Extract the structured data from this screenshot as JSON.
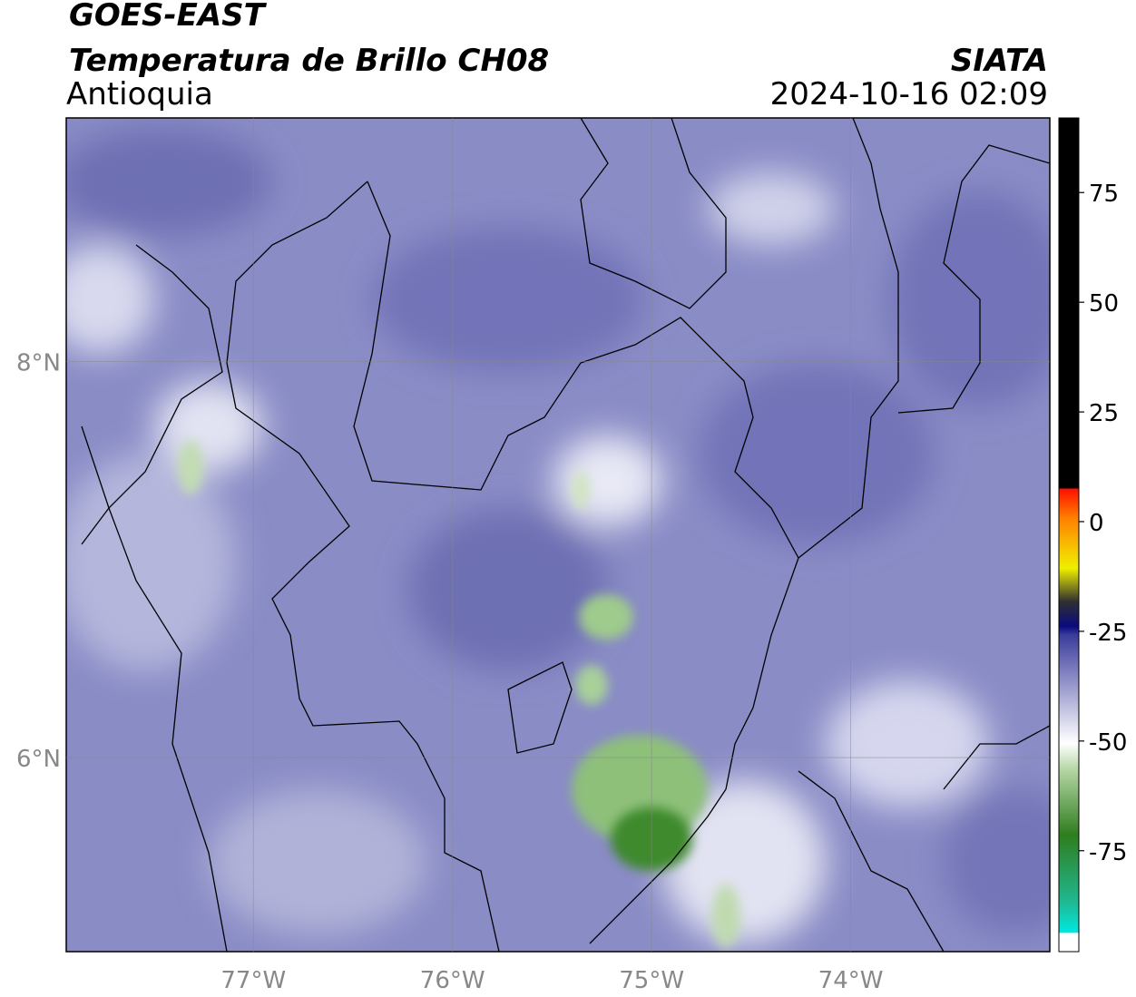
{
  "header": {
    "title": "GOES-EAST",
    "subtitle": "Temperatura de Brillo CH08",
    "region": "Antioquia",
    "source": "SIATA",
    "datetime": "2024-10-16 02:09"
  },
  "map": {
    "xlim": [
      -77.94,
      -73.0
    ],
    "ylim": [
      5.02,
      9.23
    ],
    "lon_ticks": [
      {
        "value": -77,
        "label": "77°W"
      },
      {
        "value": -76,
        "label": "76°W"
      },
      {
        "value": -75,
        "label": "75°W"
      },
      {
        "value": -74,
        "label": "74°W"
      }
    ],
    "lat_ticks": [
      {
        "value": 8,
        "label": "8°N"
      },
      {
        "value": 6,
        "label": "6°N"
      }
    ],
    "grid": true
  },
  "colorbar": {
    "lim": [
      -98,
      92
    ],
    "ticks": [
      75,
      50,
      25,
      0,
      -25,
      -50,
      -75
    ]
  }
}
